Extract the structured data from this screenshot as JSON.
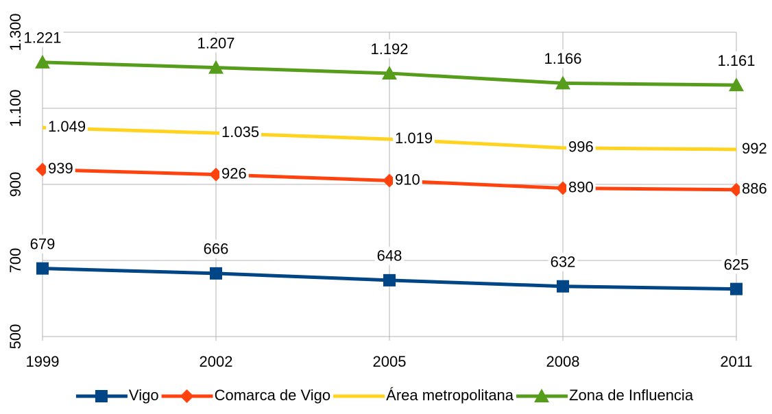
{
  "chart_data": {
    "type": "line",
    "x": [
      1999,
      2002,
      2005,
      2008,
      2011
    ],
    "xlim": [
      1999,
      2011
    ],
    "xticks": [
      1999,
      2002,
      2005,
      2008,
      2011
    ],
    "ylim": [
      500,
      1300
    ],
    "yticks": [
      500,
      700,
      900,
      {
        "value": 1100,
        "label": "1.100"
      },
      {
        "value": 1300,
        "label": "1.300"
      }
    ],
    "grid": true,
    "legend": "bottom",
    "series": [
      {
        "name": "Vigo",
        "color": "#004586",
        "marker": "square",
        "values": [
          679,
          666,
          648,
          632,
          625
        ]
      },
      {
        "name": "Comarca de Vigo",
        "color": "#ff420e",
        "marker": "diamond",
        "values": [
          939,
          926,
          910,
          890,
          886
        ]
      },
      {
        "name": "Área metropolitana",
        "color": "#ffd320",
        "marker": "none",
        "values": [
          1049,
          1035,
          1019,
          996,
          992
        ],
        "value_labels": [
          "1.049",
          "1.035",
          "1.019",
          "996",
          "992"
        ]
      },
      {
        "name": "Zona de Influencia",
        "color": "#579d1c",
        "marker": "triangle",
        "values": [
          1221,
          1207,
          1192,
          1166,
          1161
        ],
        "value_labels": [
          "1.221",
          "1.207",
          "1.192",
          "1.166",
          "1.161"
        ]
      }
    ]
  }
}
